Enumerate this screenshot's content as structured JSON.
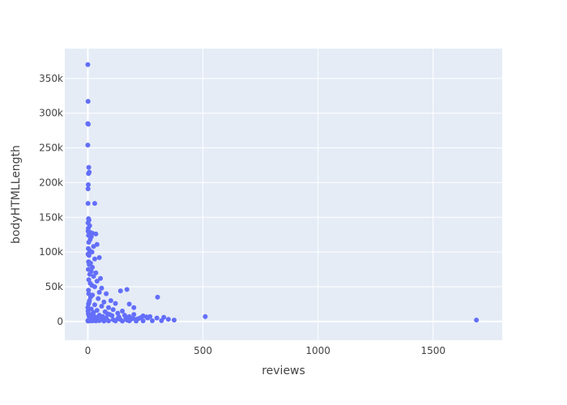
{
  "chart_data": {
    "type": "scatter",
    "xlabel": "reviews",
    "ylabel": "bodyHTMLLength",
    "xlim": [
      -100,
      1800
    ],
    "ylim": [
      -27000,
      393000
    ],
    "x_ticks": [
      0,
      500,
      1000,
      1500
    ],
    "x_tick_labels": [
      "0",
      "500",
      "1000",
      "1500"
    ],
    "y_ticks": [
      0,
      50000,
      100000,
      150000,
      200000,
      250000,
      300000,
      350000
    ],
    "y_tick_labels": [
      "0",
      "50k",
      "100k",
      "150k",
      "200k",
      "250k",
      "300k",
      "350k"
    ],
    "grid": true,
    "colors": {
      "marker": "#636efa",
      "plot_bg": "#e5ecf6",
      "grid": "#ffffff"
    },
    "series": [
      {
        "points": [
          [
            0,
            370000
          ],
          [
            1,
            317000
          ],
          [
            0,
            285000
          ],
          [
            2,
            284000
          ],
          [
            0,
            254000
          ],
          [
            4,
            222000
          ],
          [
            6,
            215000
          ],
          [
            3,
            213000
          ],
          [
            2,
            197000
          ],
          [
            1,
            191000
          ],
          [
            1,
            170000
          ],
          [
            30,
            170000
          ],
          [
            3,
            148000
          ],
          [
            5,
            146000
          ],
          [
            1,
            142000
          ],
          [
            8,
            138000
          ],
          [
            2,
            134000
          ],
          [
            1,
            130000
          ],
          [
            12,
            128000
          ],
          [
            20,
            127000
          ],
          [
            35,
            126000
          ],
          [
            3,
            124000
          ],
          [
            15,
            122000
          ],
          [
            10,
            118000
          ],
          [
            4,
            114000
          ],
          [
            40,
            111000
          ],
          [
            25,
            108000
          ],
          [
            2,
            105000
          ],
          [
            8,
            102000
          ],
          [
            18,
            100000
          ],
          [
            1,
            97000
          ],
          [
            5,
            95000
          ],
          [
            50,
            92000
          ],
          [
            30,
            90000
          ],
          [
            3,
            86000
          ],
          [
            12,
            84000
          ],
          [
            6,
            82000
          ],
          [
            20,
            78000
          ],
          [
            2,
            75000
          ],
          [
            15,
            72000
          ],
          [
            35,
            70000
          ],
          [
            8,
            68000
          ],
          [
            25,
            65000
          ],
          [
            55,
            62000
          ],
          [
            4,
            60000
          ],
          [
            40,
            58000
          ],
          [
            10,
            55000
          ],
          [
            18,
            52000
          ],
          [
            30,
            50000
          ],
          [
            60,
            48000
          ],
          [
            3,
            45000
          ],
          [
            142,
            44000
          ],
          [
            170,
            46000
          ],
          [
            50,
            42000
          ],
          [
            80,
            40000
          ],
          [
            20,
            38000
          ],
          [
            303,
            35000
          ],
          [
            45,
            33000
          ],
          [
            100,
            30000
          ],
          [
            70,
            28000
          ],
          [
            5,
            27000
          ],
          [
            120,
            26000
          ],
          [
            30,
            24000
          ],
          [
            180,
            25000
          ],
          [
            60,
            22000
          ],
          [
            200,
            20000
          ],
          [
            90,
            20000
          ],
          [
            15,
            18000
          ],
          [
            110,
            17000
          ],
          [
            40,
            16000
          ],
          [
            150,
            15000
          ],
          [
            75,
            14000
          ],
          [
            25,
            13000
          ],
          [
            130,
            12000
          ],
          [
            200,
            10000
          ],
          [
            95,
            10000
          ],
          [
            160,
            9000
          ],
          [
            50,
            9000
          ],
          [
            240,
            8000
          ],
          [
            180,
            7000
          ],
          [
            270,
            7000
          ],
          [
            330,
            6000
          ],
          [
            510,
            7000
          ],
          [
            300,
            5000
          ],
          [
            260,
            5000
          ],
          [
            220,
            4000
          ],
          [
            130,
            4000
          ],
          [
            80,
            5000
          ],
          [
            375,
            2000
          ],
          [
            1688,
            2000
          ],
          [
            350,
            3000
          ],
          [
            210,
            3000
          ],
          [
            190,
            3500
          ],
          [
            170,
            2000
          ],
          [
            140,
            3000
          ],
          [
            110,
            2500
          ],
          [
            60,
            3500
          ],
          [
            30,
            4500
          ],
          [
            10,
            6000
          ],
          [
            5,
            8000
          ],
          [
            2,
            11000
          ],
          [
            1,
            15000
          ],
          [
            0,
            20000
          ],
          [
            3,
            25000
          ],
          [
            7,
            30000
          ],
          [
            12,
            35000
          ],
          [
            4,
            40000
          ],
          [
            0,
            1000
          ],
          [
            1,
            500
          ],
          [
            2,
            2000
          ],
          [
            5,
            1500
          ],
          [
            8,
            900
          ],
          [
            12,
            1200
          ],
          [
            20,
            800
          ],
          [
            35,
            700
          ],
          [
            50,
            1100
          ],
          [
            70,
            600
          ],
          [
            90,
            900
          ],
          [
            120,
            700
          ],
          [
            150,
            500
          ],
          [
            180,
            800
          ],
          [
            210,
            600
          ],
          [
            240,
            900
          ],
          [
            280,
            1000
          ],
          [
            320,
            1200
          ],
          [
            15,
            10000
          ],
          [
            25,
            8000
          ],
          [
            40,
            6000
          ],
          [
            65,
            7000
          ],
          [
            85,
            11000
          ],
          [
            105,
            8500
          ],
          [
            135,
            6500
          ],
          [
            165,
            5500
          ],
          [
            195,
            4500
          ],
          [
            230,
            5500
          ],
          [
            255,
            6500
          ]
        ]
      }
    ]
  }
}
